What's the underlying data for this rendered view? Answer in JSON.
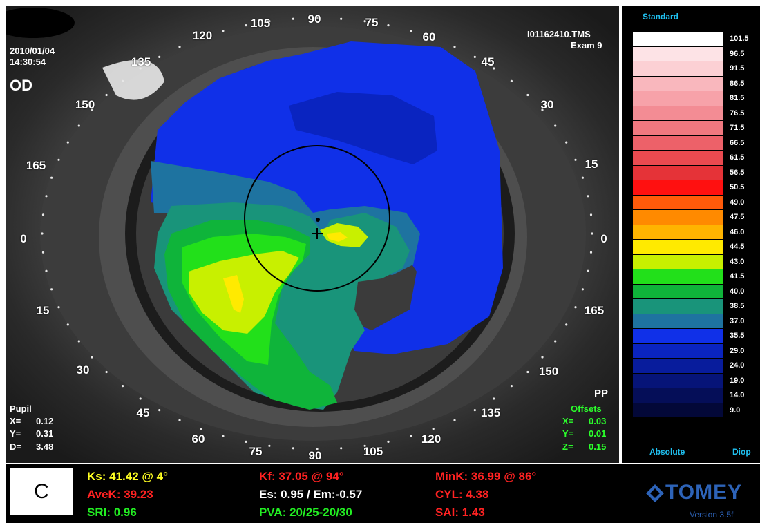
{
  "header": {
    "date": "2010/01/04",
    "time": "14:30:54",
    "eye": "OD",
    "file": "I01162410.TMS",
    "exam": "Exam 9"
  },
  "meridians": {
    "top": [
      "120",
      "105",
      "90",
      "75",
      "60",
      "45",
      "30",
      "15"
    ],
    "left": [
      "135",
      "150",
      "165",
      "0",
      "15",
      "30",
      "45"
    ],
    "right": [
      "0",
      "165",
      "150",
      "135"
    ],
    "bottom": [
      "60",
      "75",
      "90",
      "105",
      "120"
    ]
  },
  "pupil": {
    "title": "Pupil",
    "x_label": "X=",
    "x": "0.12",
    "y_label": "Y=",
    "y": "0.31",
    "d_label": "D=",
    "d": "3.48"
  },
  "offsets": {
    "pp": "PP",
    "title": "Offsets",
    "x_label": "X=",
    "x": "0.03",
    "y_label": "Y=",
    "y": "0.01",
    "z_label": "Z=",
    "z": "0.15"
  },
  "scale": {
    "title": "Standard",
    "mode": "Absolute",
    "unit": "Diop",
    "steps": [
      {
        "value": "101.5",
        "color": "#ffffff"
      },
      {
        "value": "96.5",
        "color": "#fde3e6"
      },
      {
        "value": "91.5",
        "color": "#fcd0d4"
      },
      {
        "value": "86.5",
        "color": "#f9b7bd"
      },
      {
        "value": "81.5",
        "color": "#f7a2a9"
      },
      {
        "value": "76.5",
        "color": "#f38c94"
      },
      {
        "value": "71.5",
        "color": "#f0787f"
      },
      {
        "value": "66.5",
        "color": "#ed6169"
      },
      {
        "value": "61.5",
        "color": "#ea4a50"
      },
      {
        "value": "56.5",
        "color": "#e53338"
      },
      {
        "value": "50.5",
        "color": "#ff1010"
      },
      {
        "value": "49.0",
        "color": "#ff5a0a"
      },
      {
        "value": "47.5",
        "color": "#ff8a00"
      },
      {
        "value": "46.0",
        "color": "#ffb400"
      },
      {
        "value": "44.5",
        "color": "#ffea00"
      },
      {
        "value": "43.0",
        "color": "#c8f000"
      },
      {
        "value": "41.5",
        "color": "#22e01a"
      },
      {
        "value": "40.0",
        "color": "#0fb43a"
      },
      {
        "value": "38.5",
        "color": "#19947a"
      },
      {
        "value": "37.0",
        "color": "#1e73a0"
      },
      {
        "value": "35.5",
        "color": "#1030e8"
      },
      {
        "value": "29.0",
        "color": "#0a24c0"
      },
      {
        "value": "24.0",
        "color": "#081c9c"
      },
      {
        "value": "19.0",
        "color": "#061478"
      },
      {
        "value": "14.0",
        "color": "#050e58"
      },
      {
        "value": "9.0",
        "color": "#030838"
      }
    ]
  },
  "indices": {
    "panel_letter": "C",
    "ks": "Ks: 41.42 @  4°",
    "kf": "Kf: 37.05 @ 94°",
    "mink": "MinK: 36.99 @ 86°",
    "avek": "AveK: 39.23",
    "es_em": "Es: 0.95 / Em:-0.57",
    "cyl": "CYL:  4.38",
    "sri": "SRI: 0.96",
    "pva": "PVA: 20/25-20/30",
    "sai": "SAI: 1.43",
    "brand": "TOMEY",
    "version": "Version 3.5f"
  },
  "colors": {
    "zone_blue": "#1030e8",
    "zone_darkblue": "#0a24c0",
    "zone_teal": "#1e73a0",
    "zone_seagreen": "#19947a",
    "zone_green": "#0fb43a",
    "zone_lightgreen": "#22e01a",
    "zone_yellowgreen": "#c8f000",
    "zone_yellow": "#ffea00"
  }
}
